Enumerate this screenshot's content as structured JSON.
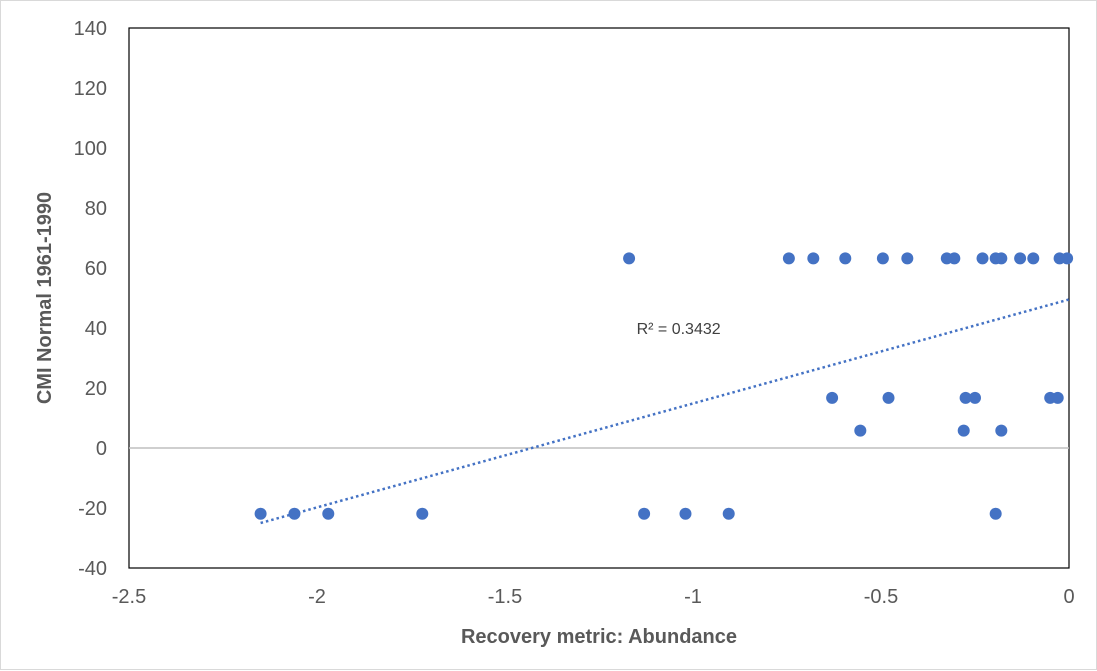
{
  "chart_data": {
    "type": "scatter",
    "title": "",
    "xlabel": "Recovery metric: Abundance",
    "ylabel": "CMI Normal 1961-1990",
    "xlim": [
      -2.5,
      0
    ],
    "ylim": [
      -40,
      140
    ],
    "x_ticks": [
      -2.5,
      -2,
      -1.5,
      -1,
      -0.5,
      0
    ],
    "x_tick_labels": [
      "-2.5",
      "-2",
      "-1.5",
      "-1",
      "-0.5",
      "0"
    ],
    "y_ticks": [
      -40,
      -20,
      0,
      20,
      40,
      60,
      80,
      100,
      120,
      140
    ],
    "y_tick_labels": [
      "-40",
      "-20",
      "0",
      "20",
      "40",
      "60",
      "80",
      "100",
      "120",
      "140"
    ],
    "grid": false,
    "legend": "none",
    "series": [
      {
        "color": "#4472c4",
        "points": [
          {
            "x": -1.17,
            "y": 63.2
          },
          {
            "x": -0.745,
            "y": 63.2
          },
          {
            "x": -0.68,
            "y": 63.2
          },
          {
            "x": -0.595,
            "y": 63.2
          },
          {
            "x": -0.495,
            "y": 63.2
          },
          {
            "x": -0.43,
            "y": 63.2
          },
          {
            "x": -0.325,
            "y": 63.2
          },
          {
            "x": -0.305,
            "y": 63.2
          },
          {
            "x": -0.23,
            "y": 63.2
          },
          {
            "x": -0.195,
            "y": 63.2
          },
          {
            "x": -0.18,
            "y": 63.2
          },
          {
            "x": -0.13,
            "y": 63.2
          },
          {
            "x": -0.095,
            "y": 63.2
          },
          {
            "x": -0.025,
            "y": 63.2
          },
          {
            "x": -0.005,
            "y": 63.2
          },
          {
            "x": -0.63,
            "y": 16.7
          },
          {
            "x": -0.48,
            "y": 16.7
          },
          {
            "x": -0.275,
            "y": 16.7
          },
          {
            "x": -0.25,
            "y": 16.7
          },
          {
            "x": -0.05,
            "y": 16.7
          },
          {
            "x": -0.03,
            "y": 16.7
          },
          {
            "x": -0.555,
            "y": 5.8
          },
          {
            "x": -0.28,
            "y": 5.8
          },
          {
            "x": -0.18,
            "y": 5.8
          },
          {
            "x": -2.15,
            "y": -21.9
          },
          {
            "x": -2.06,
            "y": -21.9
          },
          {
            "x": -1.97,
            "y": -21.9
          },
          {
            "x": -1.72,
            "y": -21.9
          },
          {
            "x": -1.13,
            "y": -21.9
          },
          {
            "x": -1.02,
            "y": -21.9
          },
          {
            "x": -0.905,
            "y": -21.9
          },
          {
            "x": -0.195,
            "y": -21.9
          }
        ]
      }
    ],
    "trendline": {
      "type": "linear",
      "color": "#4472c4",
      "style": "dotted",
      "from": {
        "x": -2.15,
        "y": -25.0
      },
      "to": {
        "x": 0,
        "y": 49.5
      },
      "r_squared_label": "R² = 0.3432",
      "label_at": {
        "x": -1.15,
        "y": 40
      }
    }
  }
}
